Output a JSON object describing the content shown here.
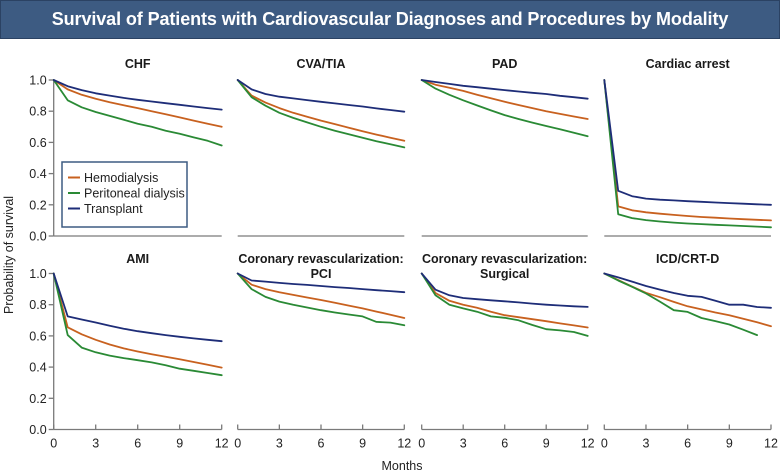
{
  "header": {
    "title": "Survival of Patients with Cardiovascular Diagnoses and Procedures by Modality"
  },
  "chart_data": {
    "type": "line",
    "title": "Survival of Patients with Cardiovascular Diagnoses and Procedures by Modality",
    "xlabel": "Months",
    "ylabel": "Probability of survival",
    "x": [
      0,
      1,
      2,
      3,
      4,
      5,
      6,
      7,
      8,
      9,
      10,
      11,
      12
    ],
    "xlim": [
      0,
      12
    ],
    "ylim": [
      0,
      1
    ],
    "xticks": [
      0,
      3,
      6,
      9,
      12
    ],
    "xtick_labels": [
      "0",
      "3",
      "6",
      "9",
      "12"
    ],
    "yticks": [
      0,
      0.2,
      0.4,
      0.6,
      0.8,
      1.0
    ],
    "ytick_labels": [
      "0.0",
      "0.2",
      "0.4",
      "0.6",
      "0.8",
      "1.0"
    ],
    "grid": false,
    "layout": "2 rows x 4 panels, shared axes",
    "legend": {
      "placement": "lower-left inside CHF panel",
      "entries": [
        {
          "name": "Hemodialysis",
          "color": "#c8611f"
        },
        {
          "name": "Peritoneal dialysis",
          "color": "#2a8a35"
        },
        {
          "name": "Transplant",
          "color": "#1e2d78"
        }
      ]
    },
    "panels": [
      {
        "title": "CHF",
        "title_line2": "",
        "series": [
          {
            "name": "Hemodialysis",
            "values": [
              1.0,
              0.94,
              0.905,
              0.88,
              0.858,
              0.838,
              0.82,
              0.8,
              0.78,
              0.76,
              0.74,
              0.72,
              0.7
            ]
          },
          {
            "name": "Peritoneal dialysis",
            "values": [
              1.0,
              0.87,
              0.825,
              0.795,
              0.77,
              0.745,
              0.72,
              0.7,
              0.675,
              0.655,
              0.632,
              0.61,
              0.58
            ]
          },
          {
            "name": "Transplant",
            "values": [
              1.0,
              0.96,
              0.935,
              0.915,
              0.9,
              0.885,
              0.873,
              0.862,
              0.851,
              0.841,
              0.83,
              0.82,
              0.81
            ]
          }
        ]
      },
      {
        "title": "CVA/TIA",
        "title_line2": "",
        "series": [
          {
            "name": "Hemodialysis",
            "values": [
              1.0,
              0.9,
              0.855,
              0.82,
              0.79,
              0.765,
              0.74,
              0.717,
              0.694,
              0.672,
              0.65,
              0.63,
              0.61
            ]
          },
          {
            "name": "Peritoneal dialysis",
            "values": [
              1.0,
              0.89,
              0.835,
              0.79,
              0.757,
              0.728,
              0.7,
              0.675,
              0.652,
              0.63,
              0.608,
              0.588,
              0.568
            ]
          },
          {
            "name": "Transplant",
            "values": [
              1.0,
              0.94,
              0.91,
              0.893,
              0.882,
              0.871,
              0.86,
              0.85,
              0.84,
              0.83,
              0.818,
              0.808,
              0.797
            ]
          }
        ]
      },
      {
        "title": "PAD",
        "title_line2": "",
        "series": [
          {
            "name": "Hemodialysis",
            "values": [
              1.0,
              0.97,
              0.95,
              0.93,
              0.906,
              0.883,
              0.86,
              0.84,
              0.82,
              0.8,
              0.783,
              0.766,
              0.75
            ]
          },
          {
            "name": "Peritoneal dialysis",
            "values": [
              1.0,
              0.945,
              0.905,
              0.87,
              0.837,
              0.805,
              0.775,
              0.75,
              0.727,
              0.705,
              0.684,
              0.662,
              0.64
            ]
          },
          {
            "name": "Transplant",
            "values": [
              1.0,
              0.987,
              0.975,
              0.963,
              0.954,
              0.944,
              0.935,
              0.926,
              0.918,
              0.91,
              0.899,
              0.89,
              0.88
            ]
          }
        ]
      },
      {
        "title": "Cardiac arrest",
        "title_line2": "",
        "series": [
          {
            "name": "Hemodialysis",
            "values": [
              1.0,
              0.19,
              0.165,
              0.152,
              0.143,
              0.135,
              0.128,
              0.122,
              0.117,
              0.112,
              0.108,
              0.104,
              0.1
            ]
          },
          {
            "name": "Peritoneal dialysis",
            "values": [
              1.0,
              0.14,
              0.115,
              0.102,
              0.093,
              0.086,
              0.08,
              0.076,
              0.072,
              0.068,
              0.064,
              0.06,
              0.056
            ]
          },
          {
            "name": "Transplant",
            "values": [
              1.0,
              0.29,
              0.255,
              0.24,
              0.233,
              0.228,
              0.223,
              0.219,
              0.215,
              0.211,
              0.207,
              0.203,
              0.2
            ]
          }
        ]
      },
      {
        "title": "AMI",
        "title_line2": "",
        "series": [
          {
            "name": "Hemodialysis",
            "values": [
              1.0,
              0.655,
              0.61,
              0.575,
              0.545,
              0.52,
              0.5,
              0.482,
              0.466,
              0.45,
              0.433,
              0.415,
              0.397
            ]
          },
          {
            "name": "Peritoneal dialysis",
            "values": [
              1.0,
              0.605,
              0.525,
              0.495,
              0.474,
              0.458,
              0.444,
              0.43,
              0.412,
              0.39,
              0.376,
              0.362,
              0.348
            ]
          },
          {
            "name": "Transplant",
            "values": [
              1.0,
              0.725,
              0.705,
              0.686,
              0.665,
              0.646,
              0.63,
              0.617,
              0.605,
              0.594,
              0.584,
              0.575,
              0.566
            ]
          }
        ]
      },
      {
        "title": "Coronary revascularization:",
        "title_line2": "PCI",
        "series": [
          {
            "name": "Hemodialysis",
            "values": [
              1.0,
              0.928,
              0.9,
              0.88,
              0.863,
              0.846,
              0.83,
              0.812,
              0.794,
              0.776,
              0.756,
              0.736,
              0.715
            ]
          },
          {
            "name": "Peritoneal dialysis",
            "values": [
              1.0,
              0.9,
              0.85,
              0.82,
              0.8,
              0.782,
              0.765,
              0.75,
              0.737,
              0.725,
              0.69,
              0.685,
              0.668
            ]
          },
          {
            "name": "Transplant",
            "values": [
              1.0,
              0.955,
              0.948,
              0.94,
              0.933,
              0.927,
              0.92,
              0.913,
              0.907,
              0.9,
              0.893,
              0.887,
              0.88
            ]
          }
        ]
      },
      {
        "title": "Coronary revascularization:",
        "title_line2": "Surgical",
        "series": [
          {
            "name": "Hemodialysis",
            "values": [
              1.0,
              0.875,
              0.825,
              0.8,
              0.78,
              0.755,
              0.733,
              0.72,
              0.707,
              0.694,
              0.68,
              0.667,
              0.654
            ]
          },
          {
            "name": "Peritoneal dialysis",
            "values": [
              1.0,
              0.86,
              0.8,
              0.776,
              0.755,
              0.725,
              0.716,
              0.7,
              0.67,
              0.643,
              0.635,
              0.625,
              0.6
            ]
          },
          {
            "name": "Transplant",
            "values": [
              1.0,
              0.896,
              0.86,
              0.843,
              0.835,
              0.828,
              0.822,
              0.815,
              0.807,
              0.8,
              0.795,
              0.79,
              0.786
            ]
          }
        ]
      },
      {
        "title": "ICD/CRT-D",
        "title_line2": "",
        "series": [
          {
            "name": "Hemodialysis",
            "values": [
              1.0,
              0.958,
              0.916,
              0.876,
              0.848,
              0.818,
              0.79,
              0.77,
              0.75,
              0.733,
              0.71,
              0.687,
              0.662
            ]
          },
          {
            "name": "Peritoneal dialysis",
            "values": [
              1.0,
              0.955,
              0.915,
              0.872,
              0.82,
              0.765,
              0.754,
              0.715,
              0.695,
              0.673,
              0.64,
              0.605,
              null
            ]
          },
          {
            "name": "Transplant",
            "values": [
              1.0,
              0.975,
              0.948,
              0.92,
              0.897,
              0.875,
              0.857,
              0.85,
              0.825,
              0.8,
              0.8,
              0.785,
              0.78
            ]
          }
        ]
      }
    ]
  }
}
